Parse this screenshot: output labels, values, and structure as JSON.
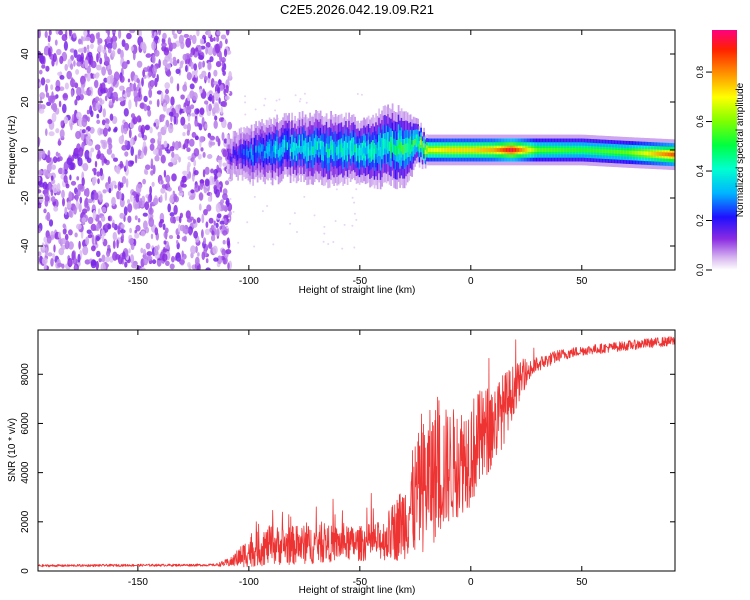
{
  "figure_title": "C2E5.2026.042.19.09.R21",
  "colorbar": {
    "label": "Normalized spectral amplitude",
    "ticks": [
      "0.0",
      "0.2",
      "0.4",
      "0.6",
      "0.8"
    ],
    "tick_values": [
      0.0,
      0.2,
      0.4,
      0.6,
      0.8
    ],
    "range": [
      0,
      0.97
    ]
  },
  "chart_data": [
    {
      "type": "heatmap",
      "title": "C2E5.2026.042.19.09.R21",
      "xlabel": "Height of straight line (km)",
      "ylabel": "Frequency (Hz)",
      "xlim": [
        -195,
        92
      ],
      "ylim": [
        -50,
        50
      ],
      "x_ticks": [
        -150,
        -100,
        -50,
        0,
        50
      ],
      "x_tick_labels": [
        "-150",
        "-100",
        "-50",
        "0",
        "50"
      ],
      "y_ticks": [
        -40,
        -20,
        0,
        20,
        40
      ],
      "y_tick_labels": [
        "-40",
        "-20",
        "0",
        "20",
        "40"
      ],
      "noise_region_x": [
        -195,
        -110
      ],
      "signal_track": {
        "x": [
          -110,
          -100,
          -90,
          -80,
          -70,
          -60,
          -50,
          -40,
          -30,
          -25,
          -20,
          -10,
          0,
          10,
          18,
          30,
          50,
          70,
          92
        ],
        "center_hz": [
          -3,
          -2,
          0,
          1,
          1,
          0,
          0,
          1,
          2,
          3,
          0,
          0,
          0,
          0,
          0,
          0,
          0,
          -1,
          -2
        ],
        "width_hz": [
          5,
          7,
          8,
          8,
          9,
          9,
          8,
          10,
          10,
          6,
          4,
          4,
          4,
          4,
          4,
          4,
          4,
          4,
          4
        ],
        "amplitude": [
          0.15,
          0.3,
          0.35,
          0.4,
          0.4,
          0.4,
          0.45,
          0.45,
          0.5,
          0.5,
          0.7,
          0.75,
          0.75,
          0.8,
          0.97,
          0.6,
          0.55,
          0.6,
          0.9
        ]
      }
    },
    {
      "type": "line",
      "xlabel": "Height of straight line (km)",
      "ylabel": "SNR (10 * v/v)",
      "xlim": [
        -195,
        92
      ],
      "ylim": [
        0,
        9800
      ],
      "x_ticks": [
        -150,
        -100,
        -50,
        0,
        50
      ],
      "x_tick_labels": [
        "-150",
        "-100",
        "-50",
        "0",
        "50"
      ],
      "y_ticks": [
        0,
        2000,
        4000,
        6000,
        8000
      ],
      "y_tick_labels": [
        "0",
        "2000",
        "4000",
        "6000",
        "8000"
      ],
      "series": [
        {
          "name": "SNR",
          "color": "#ee3333",
          "envelope_x": [
            -195,
            -150,
            -115,
            -108,
            -100,
            -90,
            -80,
            -70,
            -60,
            -50,
            -40,
            -35,
            -30,
            -25,
            -20,
            -15,
            -10,
            -5,
            0,
            5,
            10,
            15,
            20,
            25,
            30,
            40,
            50,
            60,
            70,
            80,
            92
          ],
          "envelope_base": [
            200,
            220,
            230,
            300,
            600,
            800,
            800,
            850,
            900,
            900,
            1000,
            1200,
            1600,
            2200,
            2800,
            3200,
            3500,
            3800,
            4200,
            4800,
            5400,
            6200,
            7200,
            7900,
            8300,
            8700,
            8900,
            9000,
            9100,
            9200,
            9300
          ],
          "envelope_amp": [
            60,
            60,
            60,
            250,
            800,
            1000,
            1000,
            1000,
            900,
            900,
            1000,
            1500,
            2000,
            3000,
            3500,
            3500,
            3000,
            2800,
            2800,
            2500,
            2200,
            1800,
            1200,
            600,
            400,
            300,
            250,
            250,
            250,
            250,
            250
          ]
        }
      ]
    }
  ]
}
